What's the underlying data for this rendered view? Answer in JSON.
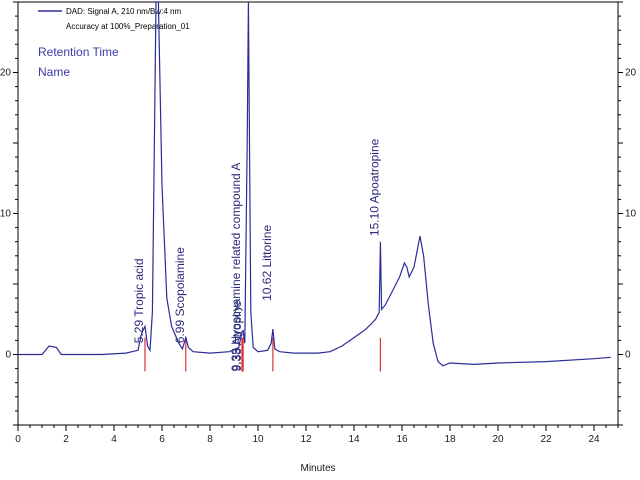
{
  "chart_data": {
    "type": "line",
    "legend": {
      "signal": "DAD: Signal A, 210 nm/Bw:4 nm",
      "sample": "Accuracy at 100%_Preparation_01"
    },
    "label_fields": [
      "Retention Time",
      "Name"
    ],
    "xlabel": "Minutes",
    "xlim": [
      0,
      25
    ],
    "ylim": [
      -5,
      25
    ],
    "x_ticks": [
      0,
      2,
      4,
      6,
      8,
      10,
      12,
      14,
      16,
      18,
      20,
      22,
      24
    ],
    "y_ticks": [
      0,
      10,
      20
    ],
    "colors": {
      "trace": "#2b2b9a",
      "marker": "#e03030",
      "axis": "#000000"
    },
    "series": [
      {
        "x": [
          0,
          1.0,
          1.3,
          1.6,
          1.8,
          2.5,
          3.5,
          4.5,
          5.0,
          5.15,
          5.29,
          5.4,
          5.5,
          5.6,
          5.75,
          5.85,
          6.0,
          6.2,
          6.4,
          6.7,
          6.85,
          6.99,
          7.1,
          7.3,
          8.0,
          8.8,
          9.2,
          9.33,
          9.38,
          9.45,
          9.55,
          9.6,
          9.7,
          9.8,
          10.0,
          10.4,
          10.55,
          10.62,
          10.7,
          10.9,
          11.5,
          12.5,
          13.0,
          13.5,
          14.0,
          14.5,
          14.9,
          15.05,
          15.1,
          15.15,
          15.3,
          15.6,
          15.9,
          16.1,
          16.2,
          16.3,
          16.5,
          16.75,
          16.9,
          17.1,
          17.3,
          17.5,
          17.7,
          18.0,
          19.0,
          20.0,
          22.0,
          24.0,
          24.7
        ],
        "y": [
          0,
          0,
          0.6,
          0.5,
          0,
          0,
          0,
          0.1,
          0.3,
          1.5,
          2.0,
          0.6,
          0.3,
          3.0,
          25,
          25,
          12,
          4,
          2,
          0.8,
          0.4,
          1.2,
          0.5,
          0.2,
          0.1,
          0.2,
          0.5,
          1.6,
          1.7,
          0.8,
          15,
          25,
          3,
          0.5,
          0.2,
          0.3,
          0.8,
          1.8,
          0.4,
          0.2,
          0.1,
          0.1,
          0.2,
          0.6,
          1.2,
          1.8,
          2.5,
          3.0,
          8.0,
          3.2,
          3.5,
          4.5,
          5.5,
          6.5,
          6.2,
          5.5,
          6.2,
          8.4,
          7.0,
          3.5,
          0.8,
          -0.5,
          -0.8,
          -0.6,
          -0.7,
          -0.6,
          -0.5,
          -0.3,
          -0.2
        ]
      }
    ],
    "peaks": [
      {
        "rt": 5.29,
        "rt_label": "5.29",
        "name": "Tropic acid",
        "label_y": 0.8
      },
      {
        "rt": 6.99,
        "rt_label": "6.99",
        "name": "Scopolamine",
        "label_y": 0.8
      },
      {
        "rt": 9.33,
        "rt_label": "9.33",
        "name": "Hyoscyamine related compound A",
        "label_y": -1.2
      },
      {
        "rt": 9.38,
        "rt_label": "9.38",
        "name": "Atropine",
        "label_y": -1.2
      },
      {
        "rt": 10.62,
        "rt_label": "10.62",
        "name": "Littorine",
        "label_y": 3.8
      },
      {
        "rt": 15.1,
        "rt_label": "15.10",
        "name": "Apoatropine",
        "label_y": 8.4
      }
    ]
  }
}
